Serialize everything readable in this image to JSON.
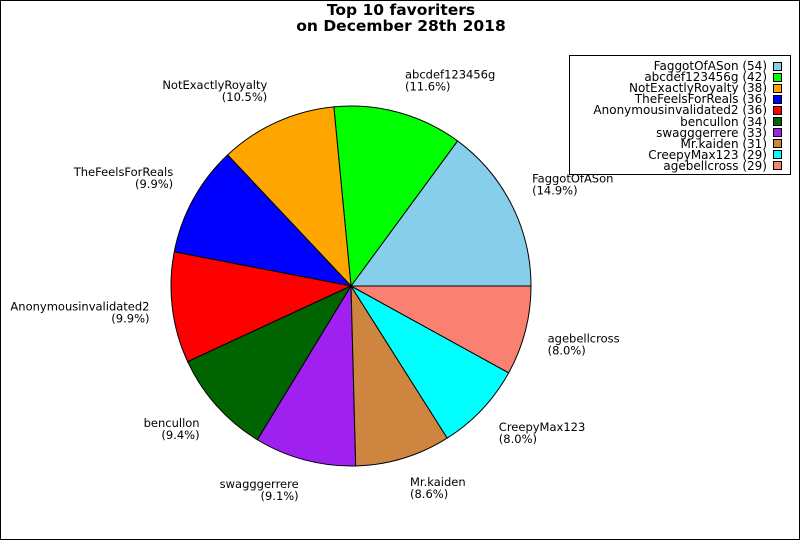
{
  "chart_data": {
    "type": "pie",
    "title": "Top 10 favoriters",
    "subtitle": "on December 28th 2018",
    "legend_position": "top-right",
    "slices": [
      {
        "name": "FaggotOfASon",
        "value": 54,
        "percent_label": "(14.9%)",
        "legend_label": "FaggotOfASon (54)",
        "color": "#87ceeb"
      },
      {
        "name": "abcdef123456g",
        "value": 42,
        "percent_label": "(11.6%)",
        "legend_label": "abcdef123456g (42)",
        "color": "#00ff00"
      },
      {
        "name": "NotExactlyRoyalty",
        "value": 38,
        "percent_label": "(10.5%)",
        "legend_label": "NotExactlyRoyalty (38)",
        "color": "#ffa500"
      },
      {
        "name": "TheFeelsForReals",
        "value": 36,
        "percent_label": "(9.9%)",
        "legend_label": "TheFeelsForReals (36)",
        "color": "#0000ff"
      },
      {
        "name": "Anonymousinvalidated2",
        "value": 36,
        "percent_label": "(9.9%)",
        "legend_label": "Anonymousinvalidated2 (36)",
        "color": "#ff0000"
      },
      {
        "name": "bencullon",
        "value": 34,
        "percent_label": "(9.4%)",
        "legend_label": "bencullon (34)",
        "color": "#006400"
      },
      {
        "name": "swagggerrere",
        "value": 33,
        "percent_label": "(9.1%)",
        "legend_label": "swagggerrere (33)",
        "color": "#a020f0"
      },
      {
        "name": "Mr.kaiden",
        "value": 31,
        "percent_label": "(8.6%)",
        "legend_label": "Mr.kaiden (31)",
        "color": "#cd853f"
      },
      {
        "name": "CreepyMax123",
        "value": 29,
        "percent_label": "(8.0%)",
        "legend_label": "CreepyMax123 (29)",
        "color": "#00ffff"
      },
      {
        "name": "agebellcross",
        "value": 29,
        "percent_label": "(8.0%)",
        "legend_label": "agebellcross (29)",
        "color": "#fa8072"
      }
    ]
  }
}
